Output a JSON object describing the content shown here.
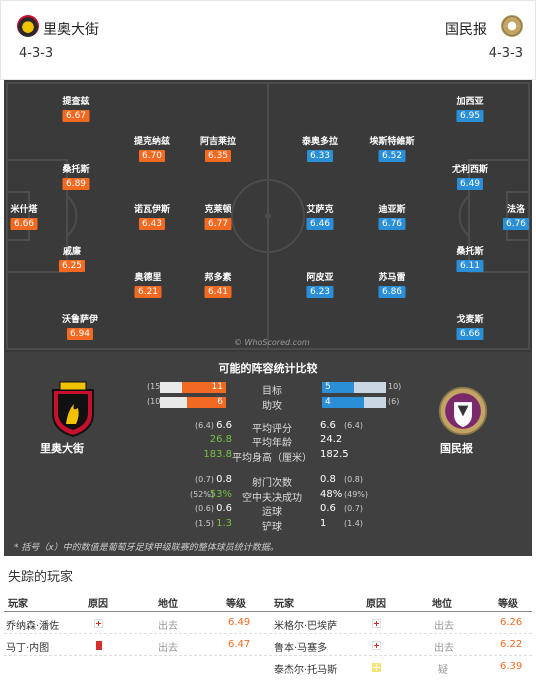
{
  "home": {
    "name": "里奥大街",
    "formation": "4-3-3"
  },
  "away": {
    "name": "国民报",
    "formation": "4-3-3"
  },
  "pitch": {
    "home_players": [
      {
        "name": "米什塔",
        "rating": "6.66"
      },
      {
        "name": "提查兹",
        "rating": "6.67"
      },
      {
        "name": "桑托斯",
        "rating": "6.89"
      },
      {
        "name": "戚廉",
        "rating": "6.25"
      },
      {
        "name": "沃鲁萨伊",
        "rating": "6.94"
      },
      {
        "name": "提克纳兹",
        "rating": "6.70"
      },
      {
        "name": "诺瓦伊斯",
        "rating": "6.43"
      },
      {
        "name": "奥德里",
        "rating": "6.21"
      },
      {
        "name": "阿吉莱拉",
        "rating": "6.35"
      },
      {
        "name": "克莱顿",
        "rating": "6.77"
      },
      {
        "name": "邦多素",
        "rating": "6.41"
      }
    ],
    "away_players": [
      {
        "name": "泰奥多拉",
        "rating": "6.33"
      },
      {
        "name": "艾萨克",
        "rating": "6.46"
      },
      {
        "name": "阿皮亚",
        "rating": "6.23"
      },
      {
        "name": "埃斯特維斯",
        "rating": "6.52"
      },
      {
        "name": "迪亚斯",
        "rating": "6.76"
      },
      {
        "name": "苏马雷",
        "rating": "6.86"
      },
      {
        "name": "加西亚",
        "rating": "6.95"
      },
      {
        "name": "尤利西斯",
        "rating": "6.49"
      },
      {
        "name": "桑托斯",
        "rating": "6.11"
      },
      {
        "name": "戈麦斯",
        "rating": "6.66"
      },
      {
        "name": "法洛",
        "rating": "6.76"
      }
    ],
    "watermark": "© WhoScored.com"
  },
  "stats": {
    "title": "可能的阵容统计比较",
    "goals": {
      "label": "目标",
      "home": 11,
      "home_avg": "(15",
      "away": 5,
      "away_avg": "10)"
    },
    "assists": {
      "label": "助攻",
      "home": 6,
      "home_avg": "(10",
      "away": 4,
      "away_avg": "(6)"
    },
    "rows": [
      {
        "label": "平均评分",
        "home_avg": "(6.4)",
        "home": "6.6",
        "away": "6.6",
        "away_avg": "(6.4)",
        "home_green": false
      },
      {
        "label": "平均年龄",
        "home_avg": "",
        "home": "26.8",
        "away": "24.2",
        "away_avg": "",
        "home_green": true
      },
      {
        "label": "平均身高（厘米）",
        "home_avg": "",
        "home": "183.8",
        "away": "182.5",
        "away_avg": "",
        "home_green": true
      },
      {
        "label": "射门次数",
        "home_avg": "(0.7)",
        "home": "0.8",
        "away": "0.8",
        "away_avg": "(0.8)",
        "home_green": false
      },
      {
        "label": "空中夫决成功",
        "home_avg": "(52%)",
        "home": "53%",
        "away": "48%",
        "away_avg": "(49%)",
        "home_green": true
      },
      {
        "label": "运球",
        "home_avg": "(0.6)",
        "home": "0.6",
        "away": "0.6",
        "away_avg": "(0.7)",
        "home_green": false
      },
      {
        "label": "铲球",
        "home_avg": "(1.5)",
        "home": "1.3",
        "away": "1",
        "away_avg": "(1.4)",
        "home_green": true
      }
    ],
    "note": "* 括号（x）中的数值是葡萄牙足球甲级联赛的整体球员统计数据。"
  },
  "missing": {
    "title": "失踪的玩家",
    "headers": {
      "player": "玩家",
      "reason": "原因",
      "position": "地位",
      "rating": "等级"
    },
    "home": [
      {
        "player": "乔纳森·潘佐",
        "reason": "injury-icon",
        "position": "出去",
        "rating": "6.49"
      },
      {
        "player": "马丁·内图",
        "reason": "red-card-icon",
        "position": "出去",
        "rating": "6.47"
      }
    ],
    "away": [
      {
        "player": "米格尔·巴埃萨",
        "reason": "injury-icon",
        "position": "出去",
        "rating": "6.26"
      },
      {
        "player": "鲁本·马塞多",
        "reason": "injury-icon",
        "position": "出去",
        "rating": "6.22"
      },
      {
        "player": "泰杰尔·托马斯",
        "reason": "doubt-icon",
        "position": "疑",
        "rating": "6.39"
      }
    ]
  }
}
